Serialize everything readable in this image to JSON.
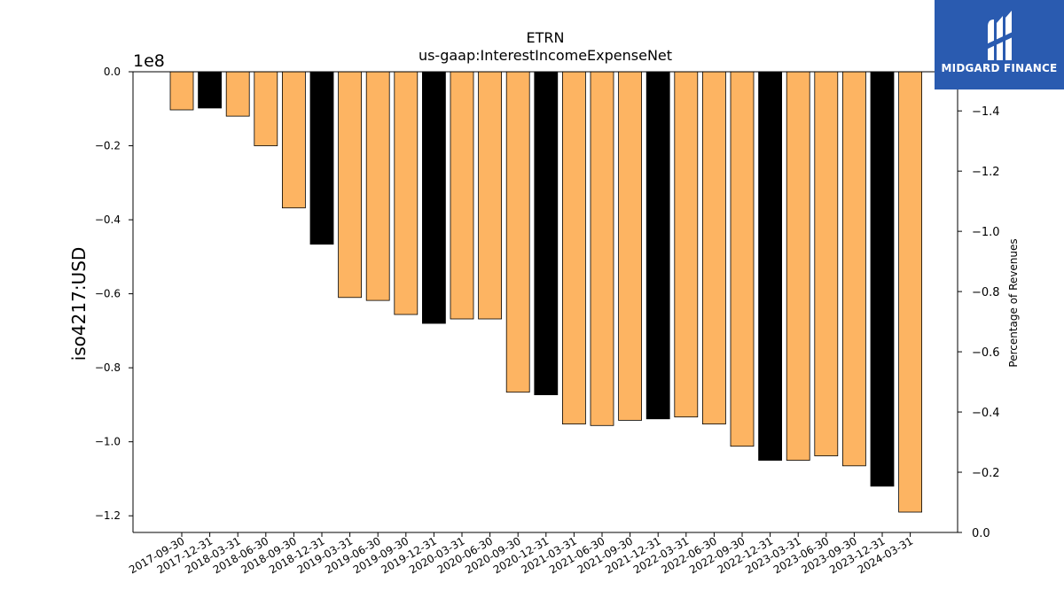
{
  "chart_data": {
    "type": "bar",
    "title": "ETRN",
    "subtitle": "us-gaap:InterestIncomeExpenseNet",
    "ylabel": "iso4217:USD",
    "ylabel_right": "Percentage of Revenues",
    "y_offset_label": "1e8",
    "ylim": [
      -1.245,
      0
    ],
    "y_ticks": [
      0.0,
      -0.2,
      -0.4,
      -0.6,
      -0.8,
      -1.0,
      -1.2
    ],
    "y_tick_labels": [
      "0.0",
      "−0.2",
      "−0.4",
      "−0.6",
      "−0.8",
      "−1.0",
      "−1.2"
    ],
    "y2lim": [
      0,
      -1.53
    ],
    "y2_ticks": [
      0.0,
      -0.2,
      -0.4,
      -0.6,
      -0.8,
      -1.0,
      -1.2,
      -1.4
    ],
    "y2_tick_labels": [
      "0.0",
      "−0.2",
      "−0.4",
      "−0.6",
      "−0.8",
      "−1.0",
      "−1.2",
      "−1.4"
    ],
    "categories": [
      "2017-09-30",
      "2017-12-31",
      "2018-03-31",
      "2018-06-30",
      "2018-09-30",
      "2018-12-31",
      "2019-03-31",
      "2019-06-30",
      "2019-09-30",
      "2019-12-31",
      "2020-03-31",
      "2020-06-30",
      "2020-09-30",
      "2020-12-31",
      "2021-03-31",
      "2021-06-30",
      "2021-09-30",
      "2021-12-31",
      "2022-03-31",
      "2022-06-30",
      "2022-09-30",
      "2022-12-31",
      "2023-03-31",
      "2023-06-30",
      "2023-09-30",
      "2023-12-31",
      "2024-03-31"
    ],
    "values": [
      -0.103,
      -0.098,
      -0.12,
      -0.2,
      -0.368,
      -0.466,
      -0.61,
      -0.618,
      -0.656,
      -0.68,
      -0.668,
      -0.668,
      -0.866,
      -0.873,
      -0.952,
      -0.956,
      -0.942,
      -0.938,
      -0.933,
      -0.952,
      -1.012,
      -1.05,
      -1.05,
      -1.038,
      -1.065,
      -1.12,
      -1.19
    ],
    "bar_colors": [
      "#fdb462",
      "#000000",
      "#fdb462",
      "#fdb462",
      "#fdb462",
      "#000000",
      "#fdb462",
      "#fdb462",
      "#fdb462",
      "#000000",
      "#fdb462",
      "#fdb462",
      "#fdb462",
      "#000000",
      "#fdb462",
      "#fdb462",
      "#fdb462",
      "#000000",
      "#fdb462",
      "#fdb462",
      "#fdb462",
      "#000000",
      "#fdb462",
      "#fdb462",
      "#fdb462",
      "#000000",
      "#fdb462"
    ],
    "grid": false
  },
  "logo": {
    "text": "MIDGARD FINANCE",
    "bg_color": "#2a5bb0"
  }
}
